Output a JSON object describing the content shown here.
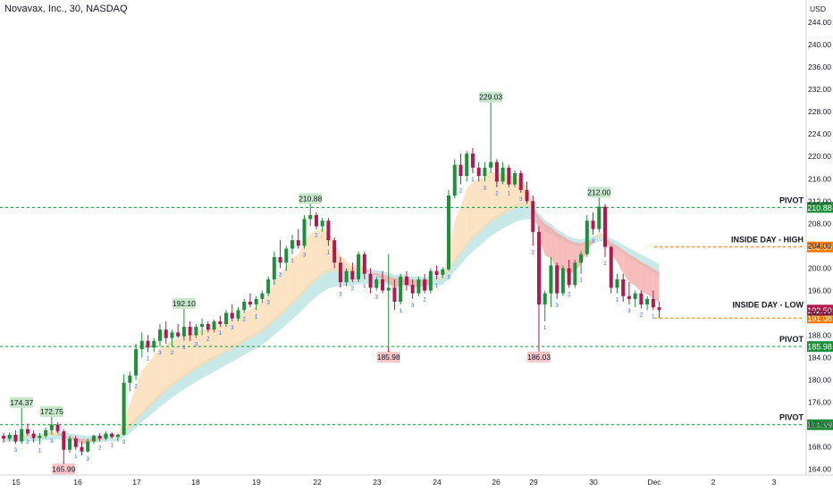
{
  "header": {
    "symbol_title": "Novavax, Inc., 30, NASDAQ",
    "currency": "USD"
  },
  "colors": {
    "up": "#26a69a",
    "up_body": "#1e8f3a",
    "down": "#b0194b",
    "pivot": "#1e8f3a",
    "inside_high": "#f57c00",
    "label_green_bg": "#c8e6c9",
    "label_red_bg": "#f8c5c8",
    "band_teal": "#b2e0df",
    "band_orange": "#fbd9b0",
    "band_red": "#f4a6a6",
    "dots": "#2962ff"
  },
  "chart_data": {
    "type": "candlestick",
    "title": "Novavax, Inc., 30, NASDAQ",
    "ylabel": "USD",
    "ylim": [
      163,
      248
    ],
    "y_ticks": [
      164,
      168,
      172,
      176,
      180,
      184,
      188,
      192,
      196,
      200,
      204,
      208,
      212,
      216,
      220,
      224,
      228,
      232,
      236,
      240,
      244,
      248
    ],
    "x_ticks": [
      "15",
      "16",
      "17",
      "18",
      "19",
      "22",
      "23",
      "24",
      "26",
      "29",
      "30",
      "Dec",
      "2",
      "3"
    ],
    "series": [
      {
        "name": "price",
        "values": [
          [
            170.0,
            170.5,
            168.8,
            169.5
          ],
          [
            169.5,
            170.6,
            169.0,
            170.2
          ],
          [
            170.2,
            171.0,
            168.6,
            169.0
          ],
          [
            169.0,
            174.37,
            168.5,
            171.2
          ],
          [
            171.2,
            172.2,
            170.0,
            170.4
          ],
          [
            170.4,
            171.0,
            168.8,
            169.6
          ],
          [
            169.6,
            170.5,
            168.5,
            170.0
          ],
          [
            170.0,
            171.5,
            169.5,
            171.0
          ],
          [
            171.0,
            172.75,
            170.2,
            172.0
          ],
          [
            172.0,
            172.4,
            170.5,
            170.8
          ],
          [
            170.8,
            171.2,
            165.99,
            167.5
          ],
          [
            167.5,
            170.0,
            167.0,
            169.5
          ],
          [
            169.5,
            170.0,
            167.5,
            168.0
          ],
          [
            168.0,
            169.0,
            166.5,
            167.2
          ],
          [
            167.2,
            169.5,
            167.0,
            169.0
          ],
          [
            169.0,
            170.2,
            168.5,
            170.0
          ],
          [
            170.0,
            170.5,
            169.0,
            169.5
          ],
          [
            169.5,
            170.8,
            169.2,
            170.4
          ],
          [
            170.4,
            170.6,
            169.5,
            169.8
          ],
          [
            169.8,
            170.4,
            169.0,
            170.2
          ],
          [
            170.2,
            181.0,
            170.0,
            179.5
          ],
          [
            179.5,
            181.5,
            178.0,
            180.8
          ],
          [
            180.8,
            186.5,
            180.0,
            185.5
          ],
          [
            185.5,
            188.5,
            184.0,
            187.0
          ],
          [
            187.0,
            188.0,
            185.0,
            185.8
          ],
          [
            185.8,
            187.5,
            185.0,
            187.0
          ],
          [
            187.0,
            190.0,
            186.0,
            189.0
          ],
          [
            189.0,
            190.5,
            186.5,
            187.5
          ],
          [
            187.5,
            189.0,
            186.0,
            188.5
          ],
          [
            188.5,
            190.0,
            187.5,
            187.8
          ],
          [
            187.8,
            192.1,
            187.0,
            189.5
          ],
          [
            189.5,
            190.5,
            187.0,
            188.0
          ],
          [
            188.0,
            190.0,
            187.5,
            189.5
          ],
          [
            189.5,
            191.0,
            188.0,
            190.0
          ],
          [
            190.0,
            190.5,
            188.5,
            189.0
          ],
          [
            189.0,
            190.8,
            188.5,
            190.5
          ],
          [
            190.5,
            191.5,
            189.5,
            190.0
          ],
          [
            190.0,
            192.5,
            189.5,
            192.0
          ],
          [
            192.0,
            193.5,
            190.5,
            191.0
          ],
          [
            191.0,
            193.0,
            190.5,
            192.5
          ],
          [
            192.5,
            194.5,
            192.0,
            194.0
          ],
          [
            194.0,
            195.5,
            193.0,
            193.5
          ],
          [
            193.5,
            195.0,
            192.5,
            194.5
          ],
          [
            194.5,
            196.0,
            193.8,
            195.5
          ],
          [
            195.5,
            198.5,
            195.0,
            198.0
          ],
          [
            198.0,
            203.0,
            197.0,
            202.0
          ],
          [
            202.0,
            205.0,
            200.0,
            201.0
          ],
          [
            201.0,
            204.0,
            199.5,
            203.5
          ],
          [
            203.5,
            206.0,
            202.5,
            205.0
          ],
          [
            205.0,
            207.0,
            203.5,
            204.0
          ],
          [
            204.0,
            209.5,
            203.5,
            208.8
          ],
          [
            208.8,
            210.88,
            207.5,
            209.5
          ],
          [
            209.5,
            210.0,
            207.0,
            207.5
          ],
          [
            207.5,
            209.0,
            206.5,
            208.5
          ],
          [
            208.5,
            209.0,
            204.0,
            205.0
          ],
          [
            205.0,
            205.5,
            200.0,
            201.0
          ],
          [
            201.0,
            202.0,
            196.5,
            197.5
          ],
          [
            197.5,
            200.0,
            196.8,
            199.5
          ],
          [
            199.5,
            201.0,
            197.5,
            198.0
          ],
          [
            198.0,
            203.0,
            197.5,
            202.5
          ],
          [
            202.5,
            203.0,
            198.0,
            199.0
          ],
          [
            199.0,
            200.0,
            195.5,
            196.5
          ],
          [
            196.5,
            198.5,
            196.0,
            198.0
          ],
          [
            198.0,
            199.5,
            195.5,
            196.0
          ],
          [
            196.0,
            202.5,
            185.98,
            196.5
          ],
          [
            196.5,
            198.0,
            192.5,
            194.0
          ],
          [
            194.0,
            199.0,
            193.5,
            198.5
          ],
          [
            198.5,
            199.5,
            196.0,
            197.0
          ],
          [
            197.0,
            198.0,
            194.5,
            195.5
          ],
          [
            195.5,
            198.5,
            195.0,
            198.0
          ],
          [
            198.0,
            199.0,
            195.5,
            196.0
          ],
          [
            196.0,
            200.0,
            195.5,
            199.5
          ],
          [
            199.5,
            200.5,
            198.0,
            198.8
          ],
          [
            198.8,
            200.2,
            198.2,
            199.8
          ],
          [
            199.8,
            214.0,
            199.5,
            213.0
          ],
          [
            213.0,
            219.5,
            212.5,
            218.5
          ],
          [
            218.5,
            220.5,
            215.0,
            216.5
          ],
          [
            216.5,
            221.0,
            215.5,
            220.5
          ],
          [
            220.5,
            221.5,
            217.0,
            218.0
          ],
          [
            218.0,
            219.0,
            215.5,
            216.5
          ],
          [
            216.5,
            219.0,
            215.5,
            218.0
          ],
          [
            218.0,
            229.03,
            217.0,
            219.0
          ],
          [
            219.0,
            219.5,
            214.5,
            215.5
          ],
          [
            215.5,
            219.0,
            215.0,
            218.0
          ],
          [
            218.0,
            218.5,
            214.5,
            215.0
          ],
          [
            215.0,
            217.5,
            214.5,
            217.0
          ],
          [
            217.0,
            217.5,
            213.5,
            214.0
          ],
          [
            214.0,
            215.5,
            211.5,
            212.0
          ],
          [
            212.0,
            213.0,
            204.0,
            206.5
          ],
          [
            206.5,
            207.5,
            186.03,
            193.5
          ],
          [
            193.5,
            196.0,
            190.5,
            195.5
          ],
          [
            195.5,
            202.0,
            193.0,
            200.5
          ],
          [
            200.5,
            201.0,
            194.5,
            195.5
          ],
          [
            195.5,
            200.5,
            195.0,
            200.0
          ],
          [
            200.0,
            201.5,
            196.5,
            197.0
          ],
          [
            197.0,
            201.5,
            196.5,
            201.0
          ],
          [
            201.0,
            203.0,
            199.0,
            202.5
          ],
          [
            202.5,
            209.5,
            202.0,
            208.5
          ],
          [
            208.5,
            210.0,
            206.0,
            207.0
          ],
          [
            207.0,
            212.0,
            206.5,
            211.0
          ],
          [
            211.0,
            211.5,
            202.0,
            203.8
          ],
          [
            203.8,
            204.0,
            195.5,
            196.5
          ],
          [
            196.5,
            199.0,
            195.5,
            198.0
          ],
          [
            198.0,
            199.0,
            194.0,
            195.0
          ],
          [
            195.0,
            197.5,
            193.5,
            194.5
          ],
          [
            194.5,
            196.0,
            193.0,
            195.5
          ],
          [
            195.5,
            196.0,
            192.8,
            193.5
          ],
          [
            193.5,
            195.0,
            192.5,
            194.5
          ],
          [
            194.5,
            196.0,
            192.5,
            193.0
          ],
          [
            193.0,
            194.0,
            191.08,
            192.5
          ]
        ]
      }
    ],
    "price_labels": [
      {
        "text": "174.37",
        "kind": "high",
        "bar": 3
      },
      {
        "text": "172.75",
        "kind": "high",
        "bar": 8
      },
      {
        "text": "165.99",
        "kind": "low",
        "bar": 10
      },
      {
        "text": "192.10",
        "kind": "high",
        "bar": 30
      },
      {
        "text": "210.88",
        "kind": "high",
        "bar": 51
      },
      {
        "text": "185.98",
        "kind": "low",
        "bar": 64
      },
      {
        "text": "229.03",
        "kind": "high",
        "bar": 81
      },
      {
        "text": "186.03",
        "kind": "low",
        "bar": 89
      },
      {
        "text": "212.00",
        "kind": "high",
        "bar": 99
      }
    ],
    "levels": [
      {
        "label": "PIVOT",
        "value": 210.88,
        "value_text": "210.88",
        "style": "pivot"
      },
      {
        "label": "INSIDE DAY - HIGH",
        "value": 203.8,
        "value_text": "203.80",
        "style": "inside_high"
      },
      {
        "label": "INSIDE DAY - LOW",
        "value": 191.08,
        "value_text": "191.08",
        "style": "inside_low"
      },
      {
        "label": "PIVOT",
        "value": 185.98,
        "value_text": "185.98",
        "style": "pivot"
      },
      {
        "label": "PIVOT",
        "value": 171.99,
        "value_text": "171.99",
        "style": "pivot"
      }
    ],
    "last_price": {
      "value": 192.5,
      "text": "192.50"
    },
    "grid": false
  }
}
